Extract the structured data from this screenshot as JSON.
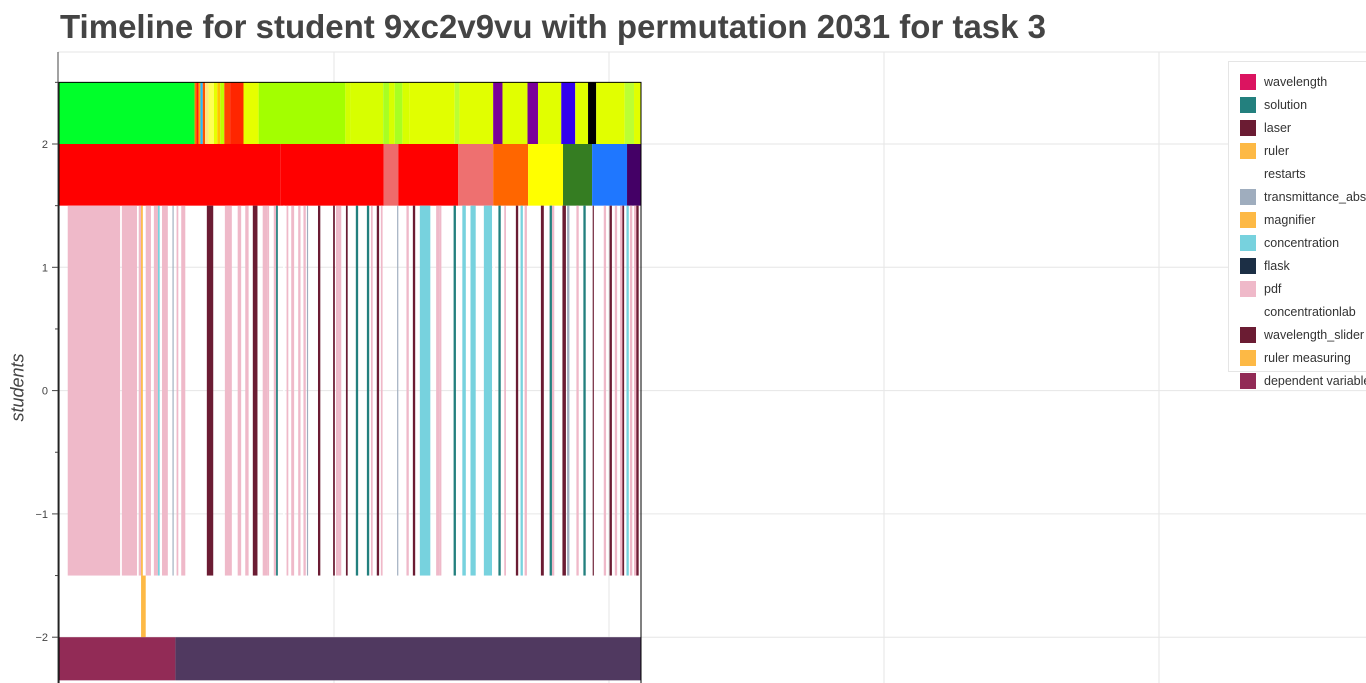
{
  "chart_data": {
    "type": "timeline",
    "title": "Timeline for student 9xc2v9vu with permutation 2031 for task 3",
    "ylabel": "students",
    "ylim": [
      -2.35,
      2.75
    ],
    "yticks": [
      2,
      1,
      0,
      -1,
      -2
    ],
    "yticklabels": [
      "2",
      "1",
      "0",
      "−1",
      "−2"
    ],
    "grid": true,
    "legend_position": "top-right",
    "legend": [
      {
        "label": "wavelength",
        "color": "#db1460"
      },
      {
        "label": "solution",
        "color": "#23807e"
      },
      {
        "label": "laser",
        "color": "#6b1c33"
      },
      {
        "label": "ruler",
        "color": "#fdb945"
      },
      {
        "label": "restarts",
        "color": "#ffffff"
      },
      {
        "label": "transmittance_abs",
        "color": "#9fadbe"
      },
      {
        "label": "magnifier",
        "color": "#fdb945"
      },
      {
        "label": "concentration",
        "color": "#77d2de"
      },
      {
        "label": "flask",
        "color": "#1c2f45"
      },
      {
        "label": "pdf",
        "color": "#efb9c9"
      },
      {
        "label": "concentrationlab",
        "color": "#ffffff"
      },
      {
        "label": "wavelength_slider",
        "color": "#6b1c33"
      },
      {
        "label": "ruler measuring",
        "color": "#fdb945"
      },
      {
        "label": "dependent variable",
        "color": "#922b56"
      }
    ],
    "t_range": [
      0,
      1000
    ],
    "rows": {
      "top": {
        "y": [
          2,
          2.5
        ],
        "segments": [
          [
            0,
            233,
            "#00ff2a"
          ],
          [
            233,
            236,
            "#ff7700"
          ],
          [
            236,
            240,
            "#ff2200"
          ],
          [
            240,
            243,
            "#ffa500"
          ],
          [
            243,
            247,
            "#22bbff"
          ],
          [
            247,
            251,
            "#ff5500"
          ],
          [
            251,
            257,
            "#ffe680"
          ],
          [
            257,
            266,
            "#ffff55"
          ],
          [
            266,
            272,
            "#e6ff00"
          ],
          [
            272,
            277,
            "#ffc400"
          ],
          [
            277,
            284,
            "#bbff00"
          ],
          [
            284,
            294,
            "#ff4400"
          ],
          [
            294,
            317,
            "#ff2600"
          ],
          [
            317,
            343,
            "#e6ff00"
          ],
          [
            343,
            492,
            "#a3ff00"
          ],
          [
            492,
            501,
            "#d2ff00"
          ],
          [
            501,
            557,
            "#d7ff00"
          ],
          [
            557,
            567,
            "#a8ff22"
          ],
          [
            567,
            577,
            "#d7ff00"
          ],
          [
            577,
            590,
            "#a8ff22"
          ],
          [
            590,
            602,
            "#d7ff00"
          ],
          [
            602,
            680,
            "#e1ff00"
          ],
          [
            680,
            688,
            "#bbff33"
          ],
          [
            688,
            746,
            "#e1ff00"
          ],
          [
            746,
            762,
            "#7a0099"
          ],
          [
            762,
            805,
            "#e1ff00"
          ],
          [
            805,
            823,
            "#7a0099"
          ],
          [
            823,
            863,
            "#e1ff00"
          ],
          [
            863,
            887,
            "#3300ee"
          ],
          [
            887,
            909,
            "#e1ff00"
          ],
          [
            909,
            923,
            "#000000"
          ],
          [
            923,
            972,
            "#e1ff00"
          ],
          [
            972,
            988,
            "#bbff33"
          ],
          [
            988,
            1000,
            "#e1ff00"
          ]
        ]
      },
      "middle": {
        "y": [
          1.5,
          2
        ],
        "segments": [
          [
            0,
            381,
            "#ff0000"
          ],
          [
            381,
            558,
            "#ff0000"
          ],
          [
            558,
            583,
            "#ef6b6b"
          ],
          [
            583,
            686,
            "#ff0000"
          ],
          [
            686,
            746,
            "#ee7070"
          ],
          [
            746,
            806,
            "#ff6600"
          ],
          [
            806,
            866,
            "#ffff00"
          ],
          [
            866,
            916,
            "#357d22"
          ],
          [
            916,
            976,
            "#1f77ff"
          ],
          [
            976,
            1000,
            "#440066"
          ]
        ]
      },
      "actions": {
        "y": [
          -1.5,
          1.5
        ],
        "segments": [
          [
            15,
            105,
            "#efb9c9"
          ],
          [
            108,
            134,
            "#efb9c9"
          ],
          [
            137,
            141,
            "#efb9c9"
          ],
          [
            141,
            144,
            "#fdb945"
          ],
          [
            149,
            158,
            "#efb9c9"
          ],
          [
            163,
            170,
            "#efb9c9"
          ],
          [
            170,
            173,
            "#77d2de"
          ],
          [
            177,
            187,
            "#efb9c9"
          ],
          [
            195,
            197,
            "#9fadbe"
          ],
          [
            202,
            205,
            "#efb9c9"
          ],
          [
            210,
            217,
            "#efb9c9"
          ],
          [
            254,
            265,
            "#6b1c33"
          ],
          [
            285,
            297,
            "#efb9c9"
          ],
          [
            307,
            313,
            "#efb9c9"
          ],
          [
            320,
            326,
            "#efb9c9"
          ],
          [
            326,
            333,
            "#ffffff"
          ],
          [
            333,
            341,
            "#6b1c33"
          ],
          [
            350,
            358,
            "#efb9c9"
          ],
          [
            358,
            361,
            "#efb9c9"
          ],
          [
            369,
            373,
            "#efb9c9"
          ],
          [
            373,
            376,
            "#23807e"
          ],
          [
            385,
            388,
            "#ffffff"
          ],
          [
            391,
            394,
            "#efb9c9"
          ],
          [
            399,
            404,
            "#efb9c9"
          ],
          [
            411,
            415,
            "#efb9c9"
          ],
          [
            420,
            424,
            "#efb9c9"
          ],
          [
            426,
            428,
            "#9fadbe"
          ],
          [
            445,
            449,
            "#6b1c33"
          ],
          [
            471,
            474,
            "#6b1c33"
          ],
          [
            476,
            481,
            "#efb9c9"
          ],
          [
            481,
            485,
            "#efb9c9"
          ],
          [
            493,
            496,
            "#6b1c33"
          ],
          [
            510,
            514,
            "#23807e"
          ],
          [
            529,
            533,
            "#23807e"
          ],
          [
            536,
            539,
            "#efb9c9"
          ],
          [
            546,
            550,
            "#6b1c33"
          ],
          [
            553,
            556,
            "#efb9c9"
          ],
          [
            581,
            583,
            "#9fadbe"
          ],
          [
            597,
            601,
            "#efb9c9"
          ],
          [
            608,
            612,
            "#6b1c33"
          ],
          [
            620,
            638,
            "#77d2de"
          ],
          [
            648,
            654,
            "#efb9c9"
          ],
          [
            654,
            657,
            "#efb9c9"
          ],
          [
            678,
            682,
            "#23807e"
          ],
          [
            693,
            699,
            "#77d2de"
          ],
          [
            706,
            710,
            "#ffffff"
          ],
          [
            707,
            716,
            "#77d2de"
          ],
          [
            730,
            744,
            "#77d2de"
          ],
          [
            746,
            749,
            "#ffffff"
          ],
          [
            755,
            759,
            "#23807e"
          ],
          [
            765,
            768,
            "#efb9c9"
          ],
          [
            785,
            789,
            "#6b1c33"
          ],
          [
            793,
            797,
            "#77d2de"
          ],
          [
            800,
            804,
            "#efb9c9"
          ],
          [
            828,
            833,
            "#6b1c33"
          ],
          [
            843,
            847,
            "#23807e"
          ],
          [
            847,
            851,
            "#efb9c9"
          ],
          [
            865,
            871,
            "#6b1c33"
          ],
          [
            873,
            877,
            "#9fadbe"
          ],
          [
            889,
            893,
            "#efb9c9"
          ],
          [
            901,
            905,
            "#23807e"
          ],
          [
            917,
            919,
            "#6b1c33"
          ],
          [
            936,
            940,
            "#efb9c9"
          ],
          [
            946,
            950,
            "#6b1c33"
          ],
          [
            955,
            959,
            "#efb9c9"
          ],
          [
            964,
            968,
            "#efb9c9"
          ],
          [
            968,
            971,
            "#6b1c33"
          ],
          [
            975,
            979,
            "#77d2de"
          ],
          [
            981,
            985,
            "#efb9c9"
          ],
          [
            988,
            993,
            "#efb9c9"
          ],
          [
            992,
            996,
            "#6b1c33"
          ]
        ]
      },
      "ruler_measuring": {
        "y": [
          -2,
          -1.5
        ],
        "segments": [
          [
            141,
            149,
            "#fdb945"
          ]
        ]
      },
      "dependent_variable": {
        "y": [
          -2.35,
          -2
        ],
        "segments": [
          [
            0,
            200,
            "#922b56"
          ],
          [
            200,
            1000,
            "#503960"
          ]
        ]
      }
    }
  }
}
